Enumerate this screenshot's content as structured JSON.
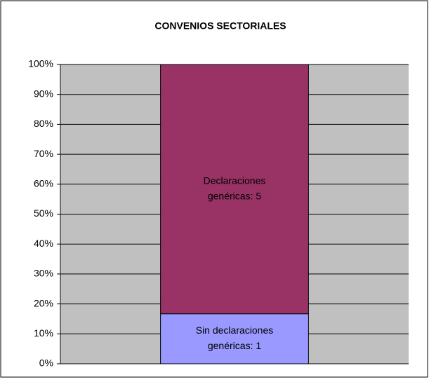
{
  "chart_data": {
    "type": "bar",
    "stacked": true,
    "title": "CONVENIOS SECTORIALES",
    "categories": [
      null
    ],
    "series": [
      {
        "name": "Sin declaraciones genéricas",
        "color": "#9999ff",
        "values": [
          16.7
        ],
        "label": [
          "Sin declaraciones",
          "genéricas: 1"
        ]
      },
      {
        "name": "Declaraciones genéricas",
        "color": "#993366",
        "values": [
          83.3
        ],
        "label": [
          "Declaraciones",
          "genéricas: 5"
        ]
      }
    ],
    "ylim": [
      0,
      100
    ],
    "yticks": [
      {
        "value": 0,
        "label": "0%"
      },
      {
        "value": 10,
        "label": "10%"
      },
      {
        "value": 20,
        "label": "20%"
      },
      {
        "value": 30,
        "label": "30%"
      },
      {
        "value": 40,
        "label": "40%"
      },
      {
        "value": 50,
        "label": "50%"
      },
      {
        "value": 60,
        "label": "60%"
      },
      {
        "value": 70,
        "label": "70%"
      },
      {
        "value": 80,
        "label": "80%"
      },
      {
        "value": 90,
        "label": "90%"
      },
      {
        "value": 100,
        "label": "100%"
      }
    ],
    "grid": true,
    "plot_background": "#c0c0c0"
  }
}
